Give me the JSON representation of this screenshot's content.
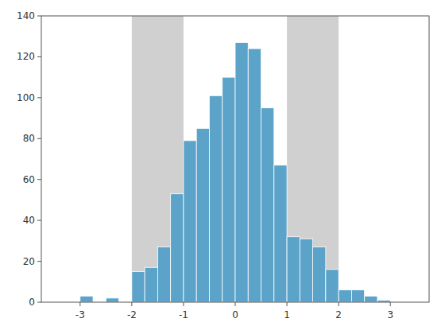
{
  "chart_data": {
    "type": "histogram",
    "bins": [
      -3.5,
      -3.25,
      -3.0,
      -2.75,
      -2.5,
      -2.25,
      -2.0,
      -1.75,
      -1.5,
      -1.25,
      -1.0,
      -0.75,
      -0.5,
      -0.25,
      0.0,
      0.25,
      0.5,
      0.75,
      1.0,
      1.25,
      1.5,
      1.75,
      2.0,
      2.25,
      2.5,
      2.75,
      3.0,
      3.25,
      3.5
    ],
    "counts": [
      0,
      0,
      3,
      0,
      2,
      0,
      15,
      17,
      27,
      53,
      79,
      85,
      101,
      110,
      127,
      124,
      95,
      67,
      32,
      31,
      27,
      16,
      6,
      6,
      3,
      1,
      0,
      0
    ],
    "color": "#5ba3c9",
    "regions": [
      {
        "x": [
          -2.0,
          -1.0
        ],
        "color": "#d0d0d0"
      },
      {
        "x": [
          1.0,
          2.0
        ],
        "color": "#d0d0d0"
      }
    ],
    "xlim": [
      -3.75,
      3.75
    ],
    "ylim": [
      0,
      140
    ],
    "xticks": [
      -3,
      -2,
      -1,
      0,
      1,
      2,
      3
    ],
    "yticks": [
      0,
      20,
      40,
      60,
      80,
      100,
      120,
      140
    ],
    "grid": false
  }
}
